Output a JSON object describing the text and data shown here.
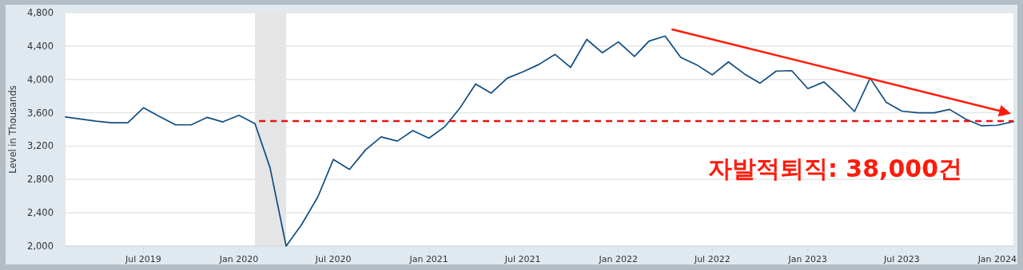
{
  "chart_data": {
    "type": "line",
    "ylabel": "Level in Thousands",
    "x": [
      "2019-02",
      "2019-03",
      "2019-04",
      "2019-05",
      "2019-06",
      "2019-07",
      "2019-08",
      "2019-09",
      "2019-10",
      "2019-11",
      "2019-12",
      "2020-01",
      "2020-02",
      "2020-03",
      "2020-04",
      "2020-05",
      "2020-06",
      "2020-07",
      "2020-08",
      "2020-09",
      "2020-10",
      "2020-11",
      "2020-12",
      "2021-01",
      "2021-02",
      "2021-03",
      "2021-04",
      "2021-05",
      "2021-06",
      "2021-07",
      "2021-08",
      "2021-09",
      "2021-10",
      "2021-11",
      "2021-12",
      "2022-01",
      "2022-02",
      "2022-03",
      "2022-04",
      "2022-05",
      "2022-06",
      "2022-07",
      "2022-08",
      "2022-09",
      "2022-10",
      "2022-11",
      "2022-12",
      "2023-01",
      "2023-02",
      "2023-03",
      "2023-04",
      "2023-05",
      "2023-06",
      "2023-07",
      "2023-08",
      "2023-09",
      "2023-10",
      "2023-11",
      "2023-12",
      "2024-01",
      "2024-02"
    ],
    "series": [
      {
        "color": "#0f4c81",
        "values": [
          3550,
          3525,
          3500,
          3480,
          3480,
          3660,
          3555,
          3455,
          3455,
          3545,
          3490,
          3570,
          3470,
          2940,
          2000,
          2260,
          2590,
          3040,
          2920,
          3155,
          3310,
          3260,
          3385,
          3295,
          3435,
          3650,
          3945,
          3835,
          4015,
          4090,
          4180,
          4300,
          4145,
          4480,
          4320,
          4450,
          4275,
          4460,
          4520,
          4265,
          4175,
          4055,
          4210,
          4065,
          3955,
          4100,
          4105,
          3890,
          3970,
          3810,
          3615,
          4015,
          3725,
          3620,
          3600,
          3600,
          3640,
          3525,
          3445,
          3450,
          3495
        ]
      },
      {
        "type": "line",
        "color": "#ff1a0a",
        "x": [
          "2022-04-15",
          "2024-01-20"
        ],
        "values": [
          4600,
          3600
        ]
      }
    ],
    "xlim": [
      "2019-02",
      "2024-02"
    ],
    "xticks": [
      {
        "value": "2019-07",
        "label": "Jul 2019"
      },
      {
        "value": "2020-01",
        "label": "Jan 2020"
      },
      {
        "value": "2020-07",
        "label": "Jul 2020"
      },
      {
        "value": "2021-01",
        "label": "Jan 2021"
      },
      {
        "value": "2021-07",
        "label": "Jul 2021"
      },
      {
        "value": "2022-01",
        "label": "Jan 2022"
      },
      {
        "value": "2022-07",
        "label": "Jul 2022"
      },
      {
        "value": "2023-01",
        "label": "Jan 2023"
      },
      {
        "value": "2023-07",
        "label": "Jul 2023"
      },
      {
        "value": "2024-01",
        "label": "Jan 2024"
      }
    ],
    "ylim": [
      2000,
      4800
    ],
    "yticks": [
      {
        "value": 2000,
        "label": "2,000"
      },
      {
        "value": 2400,
        "label": "2,400"
      },
      {
        "value": 2800,
        "label": "2,800"
      },
      {
        "value": 3200,
        "label": "3,200"
      },
      {
        "value": 3600,
        "label": "3,600"
      },
      {
        "value": 4000,
        "label": "4,000"
      },
      {
        "value": 4400,
        "label": "4,400"
      },
      {
        "value": 4800,
        "label": "4,800"
      }
    ],
    "grid": "y",
    "ref_lines": [
      {
        "axis": "y",
        "value": 3500,
        "color": "#ee1111",
        "line_style": "dashed"
      }
    ],
    "bands": [
      {
        "axis": "x",
        "from": "2020-02",
        "to": "2020-04",
        "color": "#e5e5e5"
      }
    ],
    "annotations": [
      "자발적퇴직: 38,000건"
    ]
  }
}
